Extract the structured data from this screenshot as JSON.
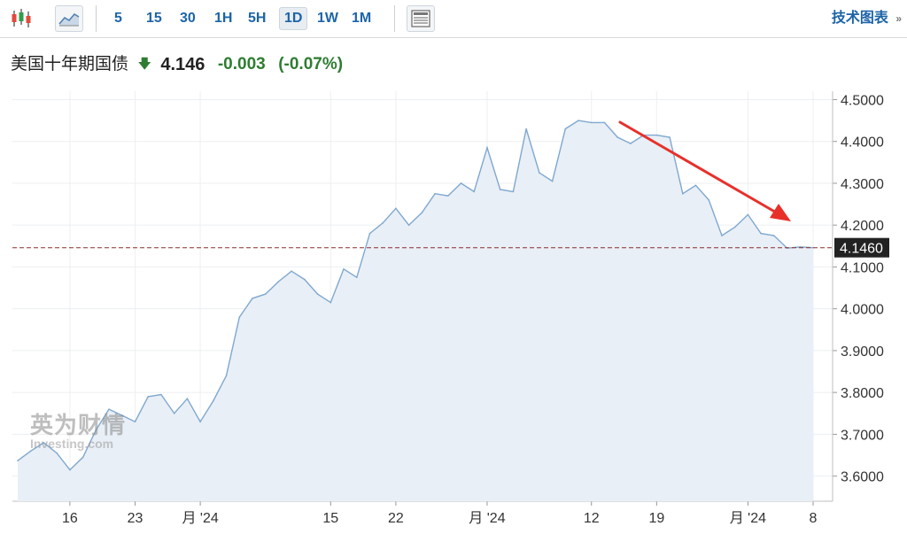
{
  "toolbar": {
    "icons": [
      "candlestick-icon",
      "area-chart-icon",
      "news-layout-icon"
    ],
    "timeframes": [
      {
        "label": "5",
        "active": false
      },
      {
        "label": "15",
        "active": false
      },
      {
        "label": "30",
        "active": false
      },
      {
        "label": "1H",
        "active": false
      },
      {
        "label": "5H",
        "active": false
      },
      {
        "label": "1D",
        "active": true
      },
      {
        "label": "1W",
        "active": false
      },
      {
        "label": "1M",
        "active": false
      }
    ],
    "tech_chart_label": "技术图表",
    "tech_chart_chevron": "»"
  },
  "quote": {
    "name": "美国十年期国债",
    "arrow": "🡇",
    "price": "4.146",
    "change": "-0.003",
    "change_pct": "(-0.07%)"
  },
  "watermark": {
    "cn": "英为财情",
    "en": "Investing.com"
  },
  "colors": {
    "line": "#7fa8d0",
    "fill": "#e9eff6",
    "price_line": "#8b2e2e",
    "price_label_bg": "#222222",
    "annotation_arrow": "#e8302a",
    "accent": "#1d64a8",
    "down": "#2e7d32"
  },
  "chart_data": {
    "type": "area",
    "title": "",
    "xlabel": "",
    "ylabel": "",
    "ylim": [
      3.54,
      4.52
    ],
    "y_ticks": [
      "4.5000",
      "4.4000",
      "4.3000",
      "4.2000",
      "4.1000",
      "4.0000",
      "3.9000",
      "3.8000",
      "3.7000",
      "3.6000"
    ],
    "x_tick_labels": [
      {
        "label": "16",
        "index": 4
      },
      {
        "label": "23",
        "index": 9
      },
      {
        "label": "月 '24",
        "index": 14
      },
      {
        "label": "15",
        "index": 24
      },
      {
        "label": "22",
        "index": 29
      },
      {
        "label": "月 '24",
        "index": 36
      },
      {
        "label": "12",
        "index": 44
      },
      {
        "label": "19",
        "index": 49
      },
      {
        "label": "月 '24",
        "index": 56
      },
      {
        "label": "8",
        "index": 61
      }
    ],
    "grid": true,
    "current_value": 4.146,
    "current_value_label": "4.1460",
    "annotation": "red arrow pointing down toward latest values",
    "series": [
      {
        "values": [
          3.637,
          3.66,
          3.68,
          3.655,
          3.615,
          3.645,
          3.71,
          3.76,
          3.745,
          3.73,
          3.79,
          3.795,
          3.75,
          3.785,
          3.73,
          3.78,
          3.84,
          3.98,
          4.025,
          4.035,
          4.065,
          4.09,
          4.07,
          4.035,
          4.015,
          4.095,
          4.075,
          4.18,
          4.205,
          4.24,
          4.2,
          4.23,
          4.275,
          4.27,
          4.3,
          4.28,
          4.385,
          4.285,
          4.28,
          4.43,
          4.325,
          4.305,
          4.43,
          4.45,
          4.445,
          4.445,
          4.41,
          4.395,
          4.415,
          4.415,
          4.41,
          4.275,
          4.295,
          4.26,
          4.175,
          4.195,
          4.225,
          4.18,
          4.175,
          4.145,
          4.148,
          4.146
        ]
      }
    ]
  }
}
